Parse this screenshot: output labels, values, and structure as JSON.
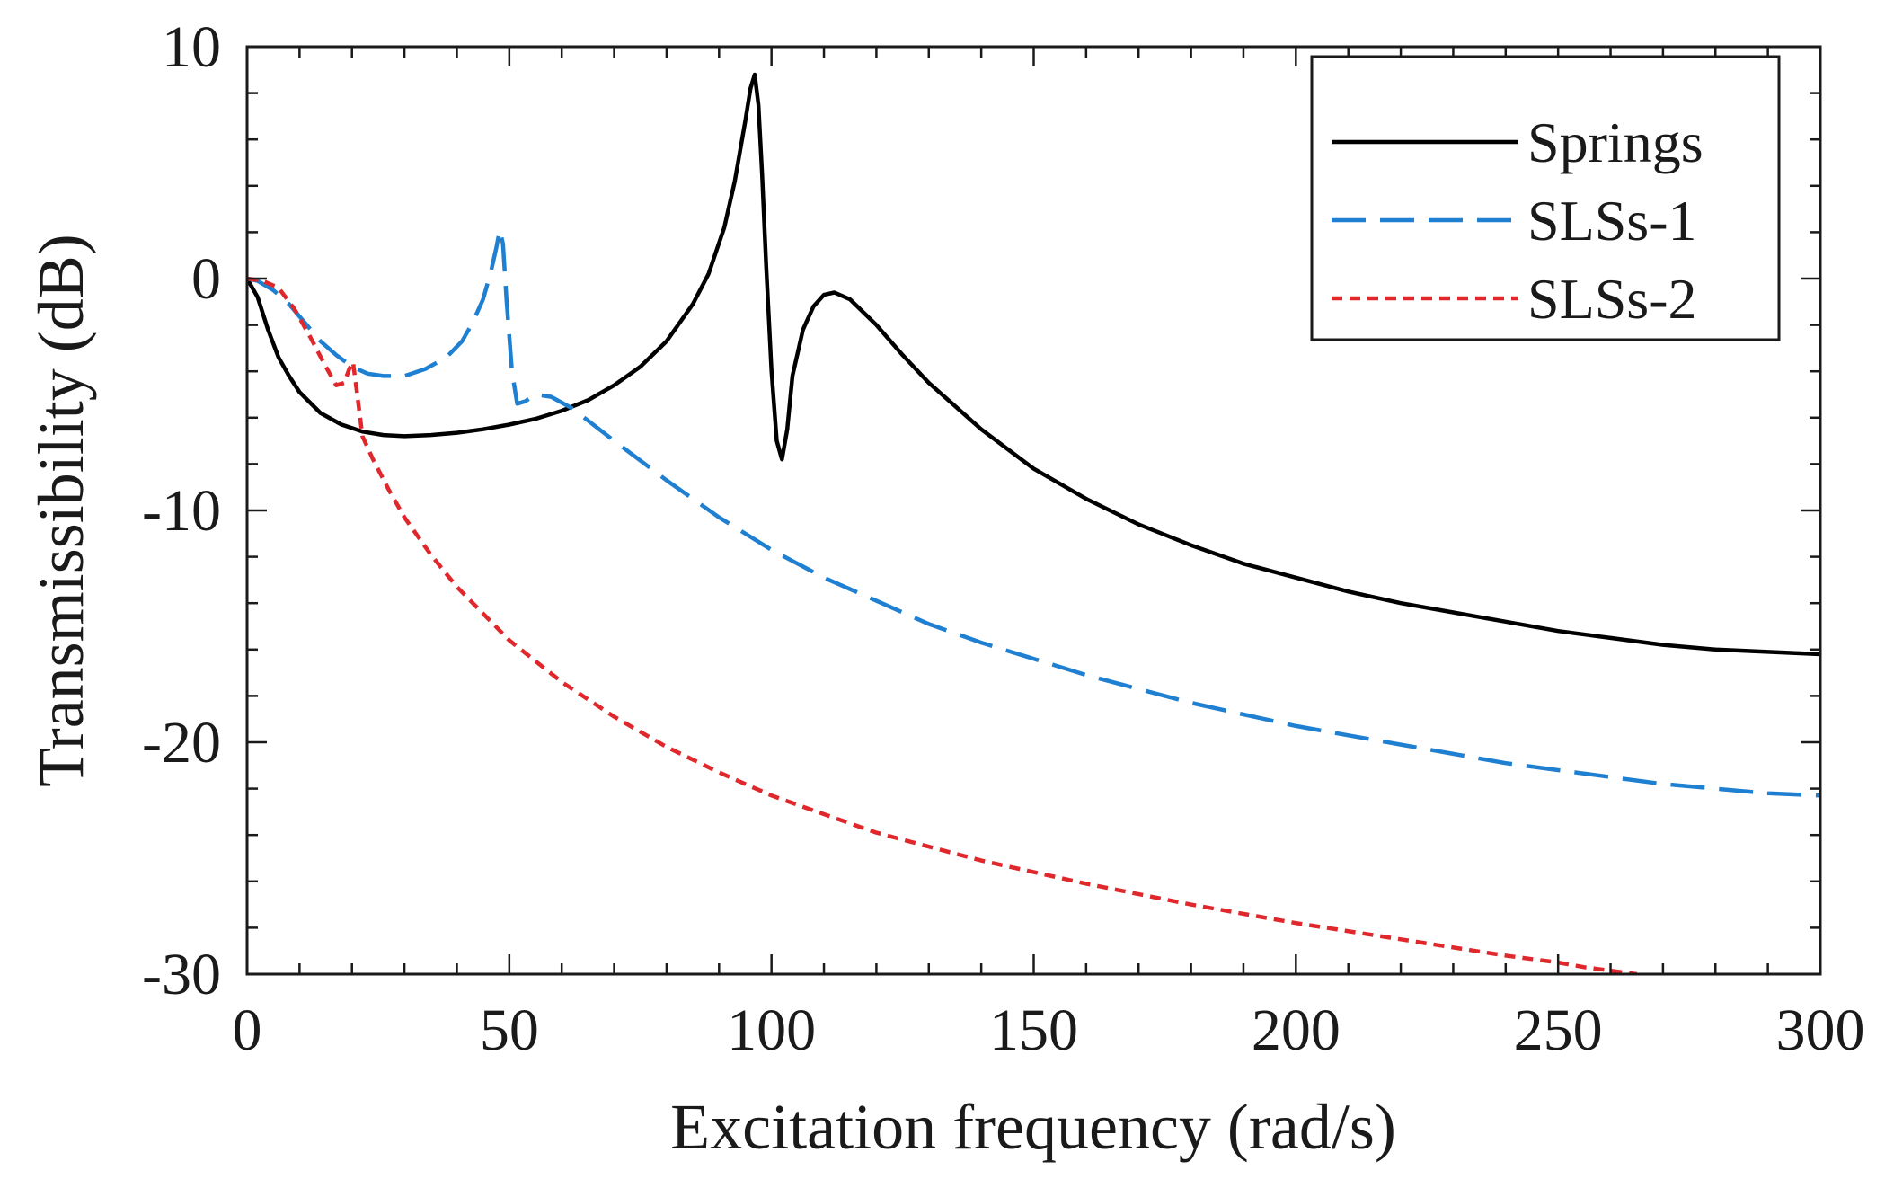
{
  "chart_data": {
    "type": "line",
    "title": "",
    "xlabel": "Excitation frequency (rad/s)",
    "ylabel": "Transmissibility (dB)",
    "xlim": [
      0,
      300
    ],
    "ylim": [
      -30,
      10
    ],
    "x_ticks": [
      0,
      50,
      100,
      150,
      200,
      250,
      300
    ],
    "y_ticks": [
      10,
      0,
      -10,
      -20,
      -30
    ],
    "x_tick_labels": [
      "0",
      "50",
      "100",
      "150",
      "200",
      "250",
      "300"
    ],
    "y_tick_labels": [
      "10",
      "0",
      "-10",
      "-20",
      "-30"
    ],
    "grid": false,
    "legend_position": "top-right",
    "series": [
      {
        "name": "Springs",
        "color": "#000000",
        "style": "solid",
        "x": [
          0,
          2,
          4,
          6,
          8,
          10,
          14,
          18,
          22,
          26,
          30,
          35,
          40,
          45,
          50,
          55,
          60,
          65,
          70,
          75,
          80,
          85,
          88,
          91,
          93,
          95,
          96,
          96.8,
          97.5,
          98.2,
          99,
          100,
          101,
          102,
          103,
          104,
          106,
          108,
          110,
          112,
          115,
          120,
          125,
          130,
          140,
          150,
          160,
          170,
          180,
          190,
          200,
          210,
          220,
          230,
          240,
          250,
          260,
          270,
          280,
          290,
          300
        ],
        "y": [
          0,
          -0.8,
          -2.2,
          -3.4,
          -4.2,
          -4.9,
          -5.8,
          -6.3,
          -6.6,
          -6.75,
          -6.8,
          -6.75,
          -6.65,
          -6.5,
          -6.3,
          -6.05,
          -5.7,
          -5.25,
          -4.6,
          -3.8,
          -2.7,
          -1.1,
          0.2,
          2.2,
          4.2,
          6.8,
          8.2,
          8.8,
          7.5,
          4.5,
          0.5,
          -4.0,
          -7.0,
          -7.8,
          -6.5,
          -4.2,
          -2.2,
          -1.2,
          -0.7,
          -0.6,
          -0.9,
          -2.0,
          -3.3,
          -4.5,
          -6.5,
          -8.2,
          -9.5,
          -10.6,
          -11.5,
          -12.3,
          -12.9,
          -13.5,
          -14.0,
          -14.4,
          -14.8,
          -15.2,
          -15.5,
          -15.8,
          -16.0,
          -16.1,
          -16.2
        ]
      },
      {
        "name": "SLSs-1",
        "color": "#1f7fd1",
        "style": "long-dash",
        "x": [
          0,
          2,
          5,
          8,
          11,
          14,
          17,
          20,
          23,
          26,
          30,
          34,
          38,
          41,
          43,
          45,
          46.5,
          47.5,
          48.2,
          48.8,
          49.5,
          50.5,
          51.5,
          53,
          55,
          58,
          62,
          66,
          70,
          80,
          90,
          100,
          110,
          120,
          130,
          140,
          150,
          160,
          170,
          180,
          190,
          200,
          210,
          220,
          230,
          240,
          250,
          260,
          270,
          280,
          290,
          300
        ],
        "y": [
          0,
          -0.1,
          -0.5,
          -1.1,
          -1.9,
          -2.7,
          -3.3,
          -3.8,
          -4.1,
          -4.2,
          -4.2,
          -3.9,
          -3.4,
          -2.7,
          -1.9,
          -0.9,
          0.3,
          1.3,
          2.1,
          1.5,
          -1.0,
          -4.0,
          -5.4,
          -5.3,
          -5.0,
          -5.1,
          -5.6,
          -6.3,
          -7.0,
          -8.7,
          -10.3,
          -11.7,
          -12.9,
          -13.9,
          -14.9,
          -15.7,
          -16.4,
          -17.1,
          -17.7,
          -18.3,
          -18.8,
          -19.3,
          -19.7,
          -20.1,
          -20.5,
          -20.9,
          -21.2,
          -21.5,
          -21.8,
          -22.0,
          -22.2,
          -22.3
        ]
      },
      {
        "name": "SLSs-2",
        "color": "#e0282c",
        "style": "short-dash",
        "x": [
          0,
          3,
          6,
          9,
          12,
          15,
          17,
          18.5,
          19.5,
          20.2,
          21,
          22,
          24,
          27,
          30,
          35,
          40,
          50,
          60,
          70,
          80,
          90,
          100,
          110,
          120,
          140,
          160,
          180,
          200,
          220,
          240,
          250,
          255,
          260,
          265
        ],
        "y": [
          0,
          -0.1,
          -0.4,
          -1.3,
          -2.5,
          -3.8,
          -4.6,
          -4.5,
          -3.9,
          -3.6,
          -5.0,
          -6.8,
          -7.8,
          -9.1,
          -10.3,
          -11.9,
          -13.3,
          -15.6,
          -17.4,
          -18.9,
          -20.2,
          -21.3,
          -22.3,
          -23.1,
          -23.9,
          -25.1,
          -26.1,
          -27.0,
          -27.8,
          -28.5,
          -29.2,
          -29.5,
          -29.7,
          -29.85,
          -30.0
        ]
      }
    ]
  }
}
